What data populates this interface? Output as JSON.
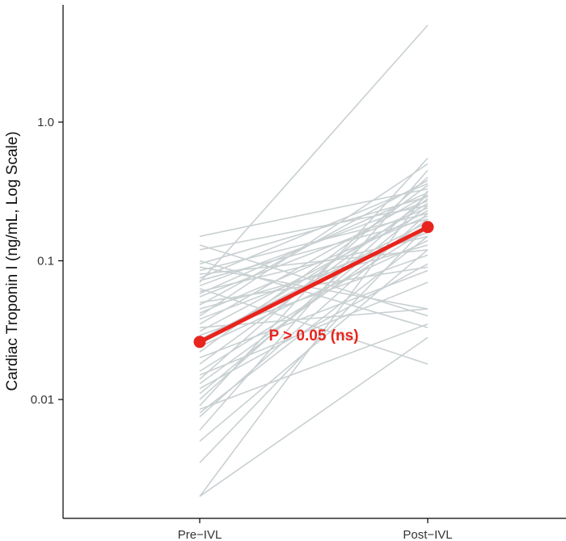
{
  "chart_data": {
    "type": "line",
    "title": "",
    "xlabel": "",
    "ylabel": "Cardiac Troponin I (ng/mL, Log Scale)",
    "y_scale": "log10",
    "ylim": [
      0.001,
      6.5
    ],
    "y_ticks": [
      {
        "value": 0.01,
        "label": "0.01"
      },
      {
        "value": 0.1,
        "label": "0.1"
      },
      {
        "value": 1.0,
        "label": "1.0"
      }
    ],
    "categories": [
      "Pre−IVL",
      "Post−IVL"
    ],
    "grid": false,
    "individual_color": "#c9d0d2",
    "summary_color": "#e8241d",
    "individual_pairs": [
      [
        0.002,
        0.028
      ],
      [
        0.002,
        0.32
      ],
      [
        0.0035,
        0.18
      ],
      [
        0.005,
        0.12
      ],
      [
        0.006,
        0.45
      ],
      [
        0.0075,
        0.22
      ],
      [
        0.008,
        0.15
      ],
      [
        0.0085,
        0.035
      ],
      [
        0.009,
        0.55
      ],
      [
        0.01,
        0.3
      ],
      [
        0.011,
        0.25
      ],
      [
        0.012,
        0.095
      ],
      [
        0.013,
        0.2
      ],
      [
        0.014,
        0.4
      ],
      [
        0.015,
        0.07
      ],
      [
        0.016,
        0.17
      ],
      [
        0.018,
        0.28
      ],
      [
        0.02,
        0.085
      ],
      [
        0.022,
        0.35
      ],
      [
        0.024,
        0.14
      ],
      [
        0.025,
        0.26
      ],
      [
        0.027,
        0.19
      ],
      [
        0.029,
        0.11
      ],
      [
        0.031,
        0.23
      ],
      [
        0.033,
        0.045
      ],
      [
        0.035,
        0.3
      ],
      [
        0.038,
        0.16
      ],
      [
        0.04,
        0.5
      ],
      [
        0.042,
        0.21
      ],
      [
        0.045,
        0.13
      ],
      [
        0.048,
        0.38
      ],
      [
        0.05,
        0.09
      ],
      [
        0.055,
        0.24
      ],
      [
        0.058,
        0.31
      ],
      [
        0.06,
        0.15
      ],
      [
        0.063,
        0.018
      ],
      [
        0.066,
        0.27
      ],
      [
        0.07,
        5.0
      ],
      [
        0.072,
        0.2
      ],
      [
        0.075,
        0.36
      ],
      [
        0.08,
        0.12
      ],
      [
        0.085,
        0.22
      ],
      [
        0.09,
        0.045
      ],
      [
        0.095,
        0.29
      ],
      [
        0.1,
        0.033
      ],
      [
        0.12,
        0.25
      ],
      [
        0.13,
        0.04
      ],
      [
        0.15,
        0.33
      ]
    ],
    "summary": {
      "values": [
        0.026,
        0.175
      ]
    },
    "annotation": "P > 0.05 (ns)"
  }
}
